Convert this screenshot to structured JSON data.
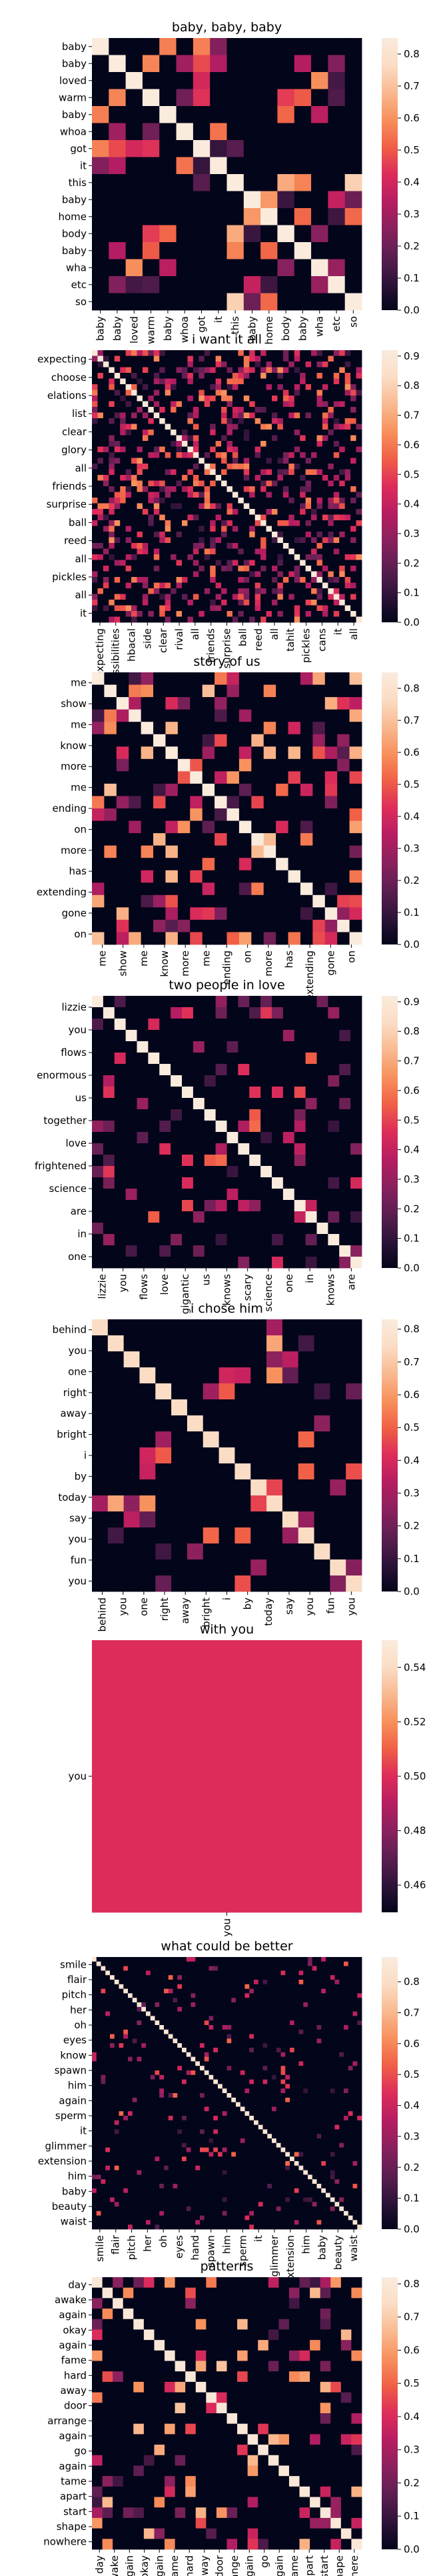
{
  "colormap": [
    "#03051a",
    "#2e1339",
    "#5c1e51",
    "#8a215e",
    "#b61d61",
    "#dd2c5a",
    "#f05f46",
    "#f7905c",
    "#f9b990",
    "#fbdcc4",
    "#faebdd"
  ],
  "chart_data": [
    {
      "type": "heatmap",
      "title": "baby, baby, baby",
      "rows": [
        "baby",
        "baby",
        "loved",
        "warm",
        "baby",
        "whoa",
        "got",
        "it",
        "this",
        "baby",
        "home",
        "body",
        "baby",
        "wha",
        "etc",
        "so"
      ],
      "cols": [
        "baby",
        "baby",
        "loved",
        "warm",
        "baby",
        "whoa",
        "got",
        "it",
        "this",
        "baby",
        "home",
        "body",
        "baby",
        "wha",
        "etc",
        "so"
      ],
      "row_labels": [
        "baby",
        "baby",
        "loved",
        "warm",
        "baby",
        "whoa",
        "got",
        "it",
        "this",
        "baby",
        "home",
        "body",
        "baby",
        "wha",
        "etc",
        "so"
      ],
      "col_labels": [
        "baby",
        "baby",
        "loved",
        "warm",
        "baby",
        "whoa",
        "got",
        "it",
        "this",
        "baby",
        "home",
        "body",
        "baby",
        "wha",
        "etc",
        "so"
      ],
      "vmin": 0,
      "vmax": 0.85,
      "colorbar_ticks": [
        0.0,
        0.1,
        0.2,
        0.3,
        0.4,
        0.5,
        0.6,
        0.7,
        0.8
      ],
      "seed": 11,
      "density": 0.22,
      "self_similarity": 1.0,
      "repeat_similarity": 0.65
    },
    {
      "type": "heatmap",
      "title": "i want it all",
      "rows": [
        "expecting",
        "choose",
        "elations",
        "list",
        "clear",
        "glory",
        "all",
        "friends",
        "surprise",
        "ball",
        "reed",
        "all",
        "pickles",
        "all",
        "it"
      ],
      "cols": [
        "expecting",
        "choose",
        "possibilities",
        "list",
        "hbacal",
        "side",
        "clear",
        "glory",
        "rival",
        "all",
        "friends",
        "surprise",
        "ball",
        "reed",
        "again",
        "all",
        "tahit",
        "pickles",
        "cans",
        "it",
        "all"
      ],
      "row_labels": [
        "expecting",
        "choose",
        "elations",
        "list",
        "clear",
        "glory",
        "all",
        "friends",
        "surprise",
        "ball",
        "reed",
        "all",
        "pickles",
        "all",
        "it"
      ],
      "col_labels": [
        "expecting",
        "possibilities",
        "hbacal",
        "side",
        "clear",
        "rival",
        "all",
        "friends",
        "surprise",
        "ball",
        "reed",
        "all",
        "tahit",
        "pickles",
        "cans",
        "it",
        "all"
      ],
      "n_rows": 48,
      "n_cols": 48,
      "vmin": 0,
      "vmax": 0.92,
      "colorbar_ticks": [
        0.0,
        0.1,
        0.2,
        0.3,
        0.4,
        0.5,
        0.6,
        0.7,
        0.8,
        0.9
      ],
      "seed": 23,
      "density": 0.3,
      "self_similarity": 0.9,
      "repeat_similarity": 0.55
    },
    {
      "type": "heatmap",
      "title": "story of us",
      "rows": [
        "me",
        "show",
        "me",
        "know",
        "more",
        "me",
        "ending",
        "on",
        "more",
        "has",
        "extending",
        "gone",
        "on"
      ],
      "cols": [
        "me",
        "show",
        "me",
        "know",
        "more",
        "me",
        "ending",
        "on",
        "more",
        "has",
        "extending",
        "gone",
        "on"
      ],
      "row_labels": [
        "me",
        "show",
        "me",
        "know",
        "more",
        "me",
        "ending",
        "on",
        "more",
        "has",
        "extending",
        "gone",
        "on"
      ],
      "col_labels": [
        "me",
        "show",
        "me",
        "know",
        "more",
        "me",
        "ending",
        "on",
        "more",
        "has",
        "extending",
        "gone",
        "on"
      ],
      "n_rows": 22,
      "n_cols": 22,
      "vmin": 0,
      "vmax": 0.85,
      "colorbar_ticks": [
        0.0,
        0.1,
        0.2,
        0.3,
        0.4,
        0.5,
        0.6,
        0.7,
        0.8
      ],
      "seed": 37,
      "density": 0.25,
      "self_similarity": 0.85,
      "repeat_similarity": 0.6
    },
    {
      "type": "heatmap",
      "title": "two people in love",
      "rows": [
        "lizzie",
        "you",
        "flows",
        "enormous",
        "us",
        "together",
        "love",
        "frightened",
        "science",
        "are",
        "in",
        "one"
      ],
      "cols": [
        "lizzie",
        "you",
        "flows",
        "love",
        "gigantic",
        "us",
        "knows",
        "scary",
        "science",
        "one",
        "in",
        "knows",
        "are"
      ],
      "row_labels": [
        "lizzie",
        "you",
        "flows",
        "enormous",
        "us",
        "together",
        "love",
        "frightened",
        "science",
        "are",
        "in",
        "one"
      ],
      "col_labels": [
        "lizzie",
        "you",
        "flows",
        "love",
        "gigantic",
        "us",
        "knows",
        "scary",
        "science",
        "one",
        "in",
        "knows",
        "are"
      ],
      "n_rows": 24,
      "n_cols": 24,
      "vmin": 0,
      "vmax": 0.92,
      "colorbar_ticks": [
        0.0,
        0.1,
        0.2,
        0.3,
        0.4,
        0.5,
        0.6,
        0.7,
        0.8,
        0.9
      ],
      "seed": 53,
      "density": 0.14,
      "self_similarity": 0.95,
      "repeat_similarity": 0.5
    },
    {
      "type": "heatmap",
      "title": "i chose him",
      "rows": [
        "behind",
        "you",
        "one",
        "right",
        "away",
        "bright",
        "i",
        "by",
        "today",
        "say",
        "you",
        "fun",
        "you"
      ],
      "cols": [
        "behind",
        "you",
        "one",
        "right",
        "away",
        "bright",
        "i",
        "by",
        "today",
        "say",
        "you",
        "fun",
        "you"
      ],
      "row_labels": [
        "behind",
        "you",
        "one",
        "right",
        "away",
        "bright",
        "i",
        "by",
        "today",
        "say",
        "you",
        "fun",
        "you"
      ],
      "col_labels": [
        "behind",
        "you",
        "one",
        "right",
        "away",
        "bright",
        "i",
        "by",
        "today",
        "say",
        "you",
        "fun",
        "you"
      ],
      "n_rows": 17,
      "n_cols": 17,
      "vmin": 0,
      "vmax": 0.83,
      "colorbar_ticks": [
        0.0,
        0.1,
        0.2,
        0.3,
        0.4,
        0.5,
        0.6,
        0.7,
        0.8
      ],
      "seed": 71,
      "density": 0.13,
      "self_similarity": 0.75,
      "repeat_similarity": 0.55
    },
    {
      "type": "heatmap",
      "title": "with you",
      "rows": [
        "you"
      ],
      "cols": [
        "you"
      ],
      "row_labels": [
        "you"
      ],
      "col_labels": [
        "you"
      ],
      "values": [
        [
          0.5
        ]
      ],
      "vmin": 0.45,
      "vmax": 0.55,
      "colorbar_ticks": [
        0.46,
        0.48,
        0.5,
        0.52,
        0.54
      ],
      "colorbar_tick_labels": [
        "0.46",
        "0.48",
        "0.50",
        "0.52",
        "0.54"
      ]
    },
    {
      "type": "heatmap",
      "title": "what could be better",
      "rows": [
        "smile",
        "flair",
        "pitch",
        "her",
        "oh",
        "eyes",
        "know",
        "spawn",
        "him",
        "again",
        "sperm",
        "it",
        "glimmer",
        "extension",
        "him",
        "baby",
        "beauty",
        "waist"
      ],
      "cols": [
        "smile",
        "flair",
        "pitch",
        "her",
        "oh",
        "eyes",
        "hand",
        "spawn",
        "him",
        "sperm",
        "it",
        "glimmer",
        "extension",
        "him",
        "baby",
        "beauty",
        "waist"
      ],
      "row_labels": [
        "smile",
        "flair",
        "pitch",
        "her",
        "oh",
        "eyes",
        "know",
        "spawn",
        "him",
        "again",
        "sperm",
        "it",
        "glimmer",
        "extension",
        "him",
        "baby",
        "beauty",
        "waist"
      ],
      "col_labels": [
        "smile",
        "flair",
        "pitch",
        "her",
        "oh",
        "eyes",
        "hand",
        "spawn",
        "him",
        "sperm",
        "it",
        "glimmer",
        "extension",
        "him",
        "baby",
        "beauty",
        "waist"
      ],
      "n_rows": 60,
      "n_cols": 60,
      "vmin": 0,
      "vmax": 0.88,
      "colorbar_ticks": [
        0.0,
        0.1,
        0.2,
        0.3,
        0.4,
        0.5,
        0.6,
        0.7,
        0.8
      ],
      "seed": 89,
      "density": 0.06,
      "self_similarity": 0.85,
      "repeat_similarity": 0.45
    },
    {
      "type": "heatmap",
      "title": "patterns",
      "rows": [
        "day",
        "awake",
        "again",
        "okay",
        "again",
        "fame",
        "hard",
        "away",
        "door",
        "arrange",
        "again",
        "go",
        "again",
        "tame",
        "apart",
        "start",
        "shape",
        "nowhere"
      ],
      "cols": [
        "day",
        "awake",
        "again",
        "okay",
        "again",
        "fame",
        "hard",
        "away",
        "door",
        "arrange",
        "again",
        "go",
        "again",
        "tame",
        "apart",
        "start",
        "shape",
        "nowhere"
      ],
      "row_labels": [
        "day",
        "awake",
        "again",
        "okay",
        "again",
        "fame",
        "hard",
        "away",
        "door",
        "arrange",
        "again",
        "go",
        "again",
        "tame",
        "apart",
        "start",
        "shape",
        "nowhere"
      ],
      "col_labels": [
        "day",
        "awake",
        "again",
        "okay",
        "again",
        "fame",
        "hard",
        "away",
        "door",
        "arrange",
        "again",
        "go",
        "again",
        "tame",
        "apart",
        "start",
        "shape",
        "nowhere"
      ],
      "n_rows": 26,
      "n_cols": 26,
      "vmin": 0,
      "vmax": 0.82,
      "colorbar_ticks": [
        0.0,
        0.1,
        0.2,
        0.3,
        0.4,
        0.5,
        0.6,
        0.7,
        0.8
      ],
      "seed": 97,
      "density": 0.16,
      "self_similarity": 0.8,
      "repeat_similarity": 0.6
    }
  ]
}
